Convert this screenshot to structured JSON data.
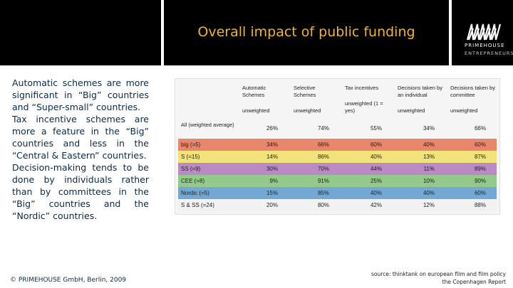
{
  "slide": {
    "title": "Overall impact of public funding",
    "logo": {
      "name": "PRIMEHOUSE",
      "tagline": "ENTREPRENEURS"
    },
    "body_paragraphs": [
      "Automatic schemes are more significant in “Big” countries and “Super-small” countries.",
      "Tax incentive schemes are more a feature in the “Big” countries and less in the “Central & Eastern” countries.",
      "Decision-making tends to be done by individuals rather than by committees in the “Big” countries and the “Nordic” countries."
    ],
    "footer_left": "© PRIMEHOUSE GmbH, Berlin, 2009",
    "source_line1": "source: thinktank on european film and film policy",
    "source_line2": "the Copenhagen Report"
  },
  "table": {
    "headers": [
      {
        "main": "Automatic Schemes",
        "sub": "unweighted"
      },
      {
        "main": "Selective Schemes",
        "sub": "unweighted"
      },
      {
        "main": "Tax incentives",
        "sub": "unweighted (1 = yes)"
      },
      {
        "main": "Decisions taken by an individual",
        "sub": "unweighted"
      },
      {
        "main": "Decisions taken by committee",
        "sub": "unweighted"
      }
    ],
    "rows": [
      {
        "label": "All (weighted average)",
        "color": "#f5f5f5",
        "values": [
          "26%",
          "74%",
          "55%",
          "34%",
          "66%"
        ]
      },
      {
        "label": "big (=5)",
        "color": "#e8876b",
        "values": [
          "34%",
          "66%",
          "60%",
          "40%",
          "60%"
        ]
      },
      {
        "label": "S (=15)",
        "color": "#f2e27a",
        "values": [
          "14%",
          "86%",
          "40%",
          "13%",
          "87%"
        ]
      },
      {
        "label": "SS (=9)",
        "color": "#b98ac4",
        "values": [
          "30%",
          "70%",
          "44%",
          "11%",
          "89%"
        ]
      },
      {
        "label": "CEE (=8)",
        "color": "#93c98a",
        "values": [
          "9%",
          "91%",
          "25%",
          "10%",
          "90%"
        ]
      },
      {
        "label": "Nordic (=5)",
        "color": "#74a8d4",
        "values": [
          "15%",
          "85%",
          "40%",
          "40%",
          "60%"
        ]
      },
      {
        "label": "S & SS (=24)",
        "color": "#f2f2f2",
        "values": [
          "20%",
          "80%",
          "42%",
          "12%",
          "88%"
        ]
      }
    ]
  }
}
